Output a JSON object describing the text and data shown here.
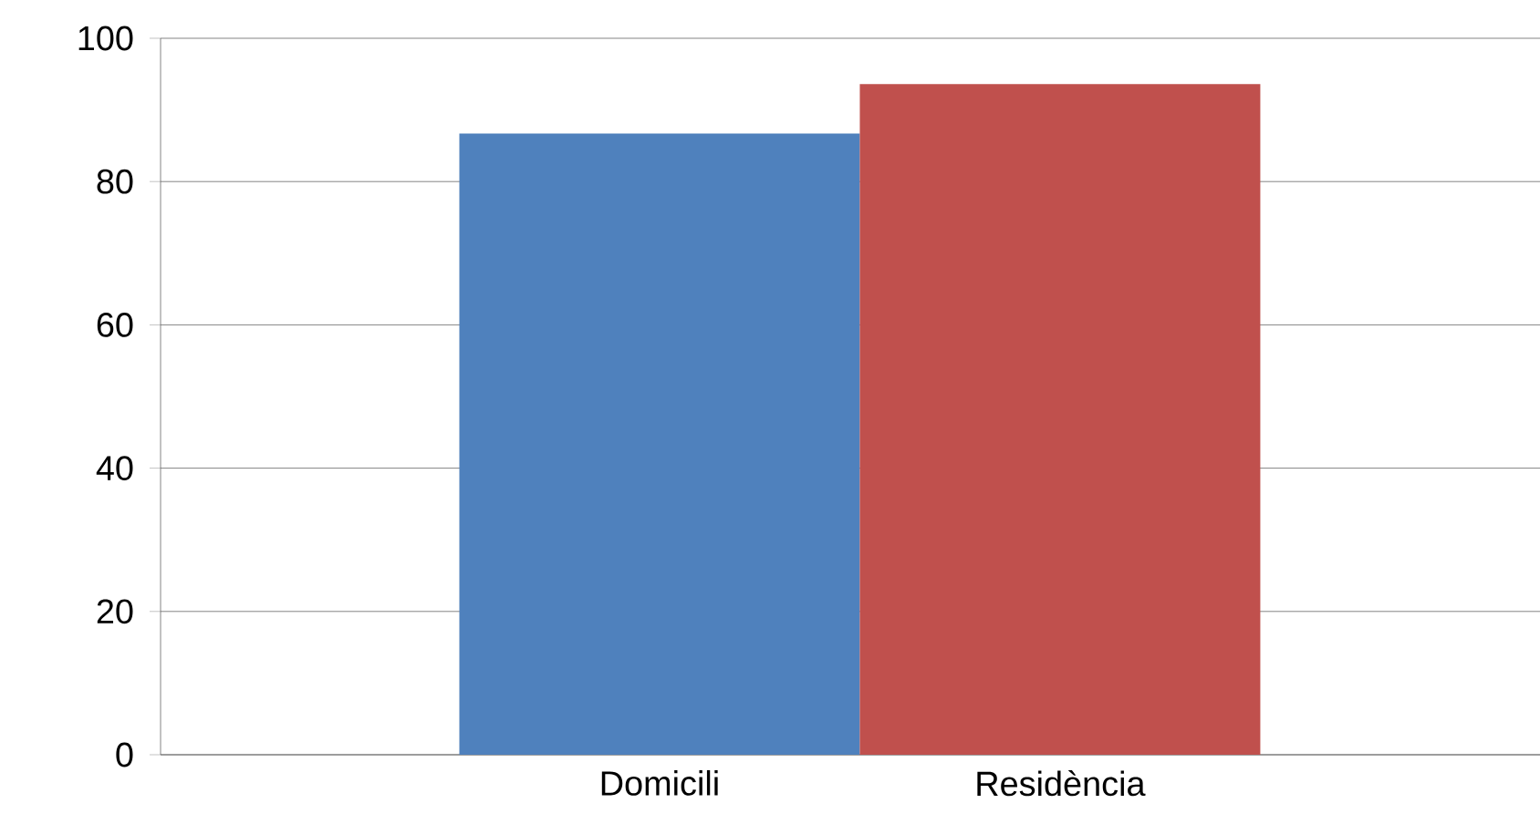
{
  "chart_data": {
    "type": "bar",
    "categories": [
      "Domicili",
      "Residència"
    ],
    "values": [
      86.7,
      93.6
    ],
    "colors": [
      "#4f81bd",
      "#c0504d"
    ],
    "ylim": [
      0,
      100
    ],
    "yticks": [
      0,
      20,
      40,
      60,
      80,
      100
    ],
    "grid": "y"
  }
}
